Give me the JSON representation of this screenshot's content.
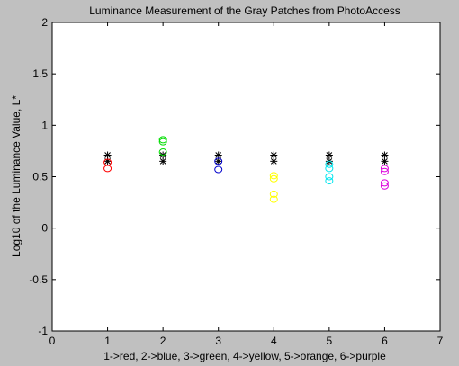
{
  "chart_data": {
    "type": "scatter",
    "title": "Luminance Measurement of the Gray Patches from PhotoAccess",
    "xlabel": "1->red, 2->blue, 3->green, 4->yellow, 5->orange, 6->purple",
    "ylabel": "Log10 of the Luminance Value, L*",
    "xlim": [
      0,
      7
    ],
    "ylim": [
      -1,
      2
    ],
    "xticks": [
      0,
      1,
      2,
      3,
      4,
      5,
      6,
      7
    ],
    "xtick_labels": [
      "0",
      "1",
      "2",
      "3",
      "4",
      "5",
      "6",
      "7"
    ],
    "yticks": [
      -1,
      -0.5,
      0,
      0.5,
      1,
      1.5,
      2
    ],
    "ytick_labels": [
      "-1",
      "-0.5",
      "0",
      "0.5",
      "1",
      "1.5",
      "2"
    ],
    "grid": false,
    "background": "#c0c0c0",
    "plot_background": "#ffffff",
    "series": [
      {
        "marker": "star",
        "color": "#000000",
        "x": [
          1,
          1,
          2,
          2,
          3,
          3,
          4,
          4,
          5,
          5,
          6,
          6
        ],
        "y": [
          0.71,
          0.65,
          0.71,
          0.65,
          0.71,
          0.65,
          0.71,
          0.65,
          0.71,
          0.65,
          0.71,
          0.65
        ]
      },
      {
        "marker": "circle",
        "color": "#ff0000",
        "x": [
          1,
          1
        ],
        "y": [
          0.64,
          0.58
        ]
      },
      {
        "marker": "circle",
        "color": "#00dd00",
        "x": [
          2,
          2,
          2
        ],
        "y": [
          0.86,
          0.84,
          0.74
        ]
      },
      {
        "marker": "circle",
        "color": "#0000cc",
        "x": [
          3,
          3
        ],
        "y": [
          0.65,
          0.57
        ]
      },
      {
        "marker": "circle",
        "color": "#ffff00",
        "x": [
          4,
          4,
          4,
          4
        ],
        "y": [
          0.51,
          0.48,
          0.33,
          0.28
        ]
      },
      {
        "marker": "circle",
        "color": "#00e5ee",
        "x": [
          5,
          5,
          5,
          5
        ],
        "y": [
          0.62,
          0.58,
          0.5,
          0.46
        ]
      },
      {
        "marker": "circle",
        "color": "#dd00dd",
        "x": [
          6,
          6,
          6,
          6
        ],
        "y": [
          0.58,
          0.55,
          0.44,
          0.41
        ]
      }
    ]
  }
}
